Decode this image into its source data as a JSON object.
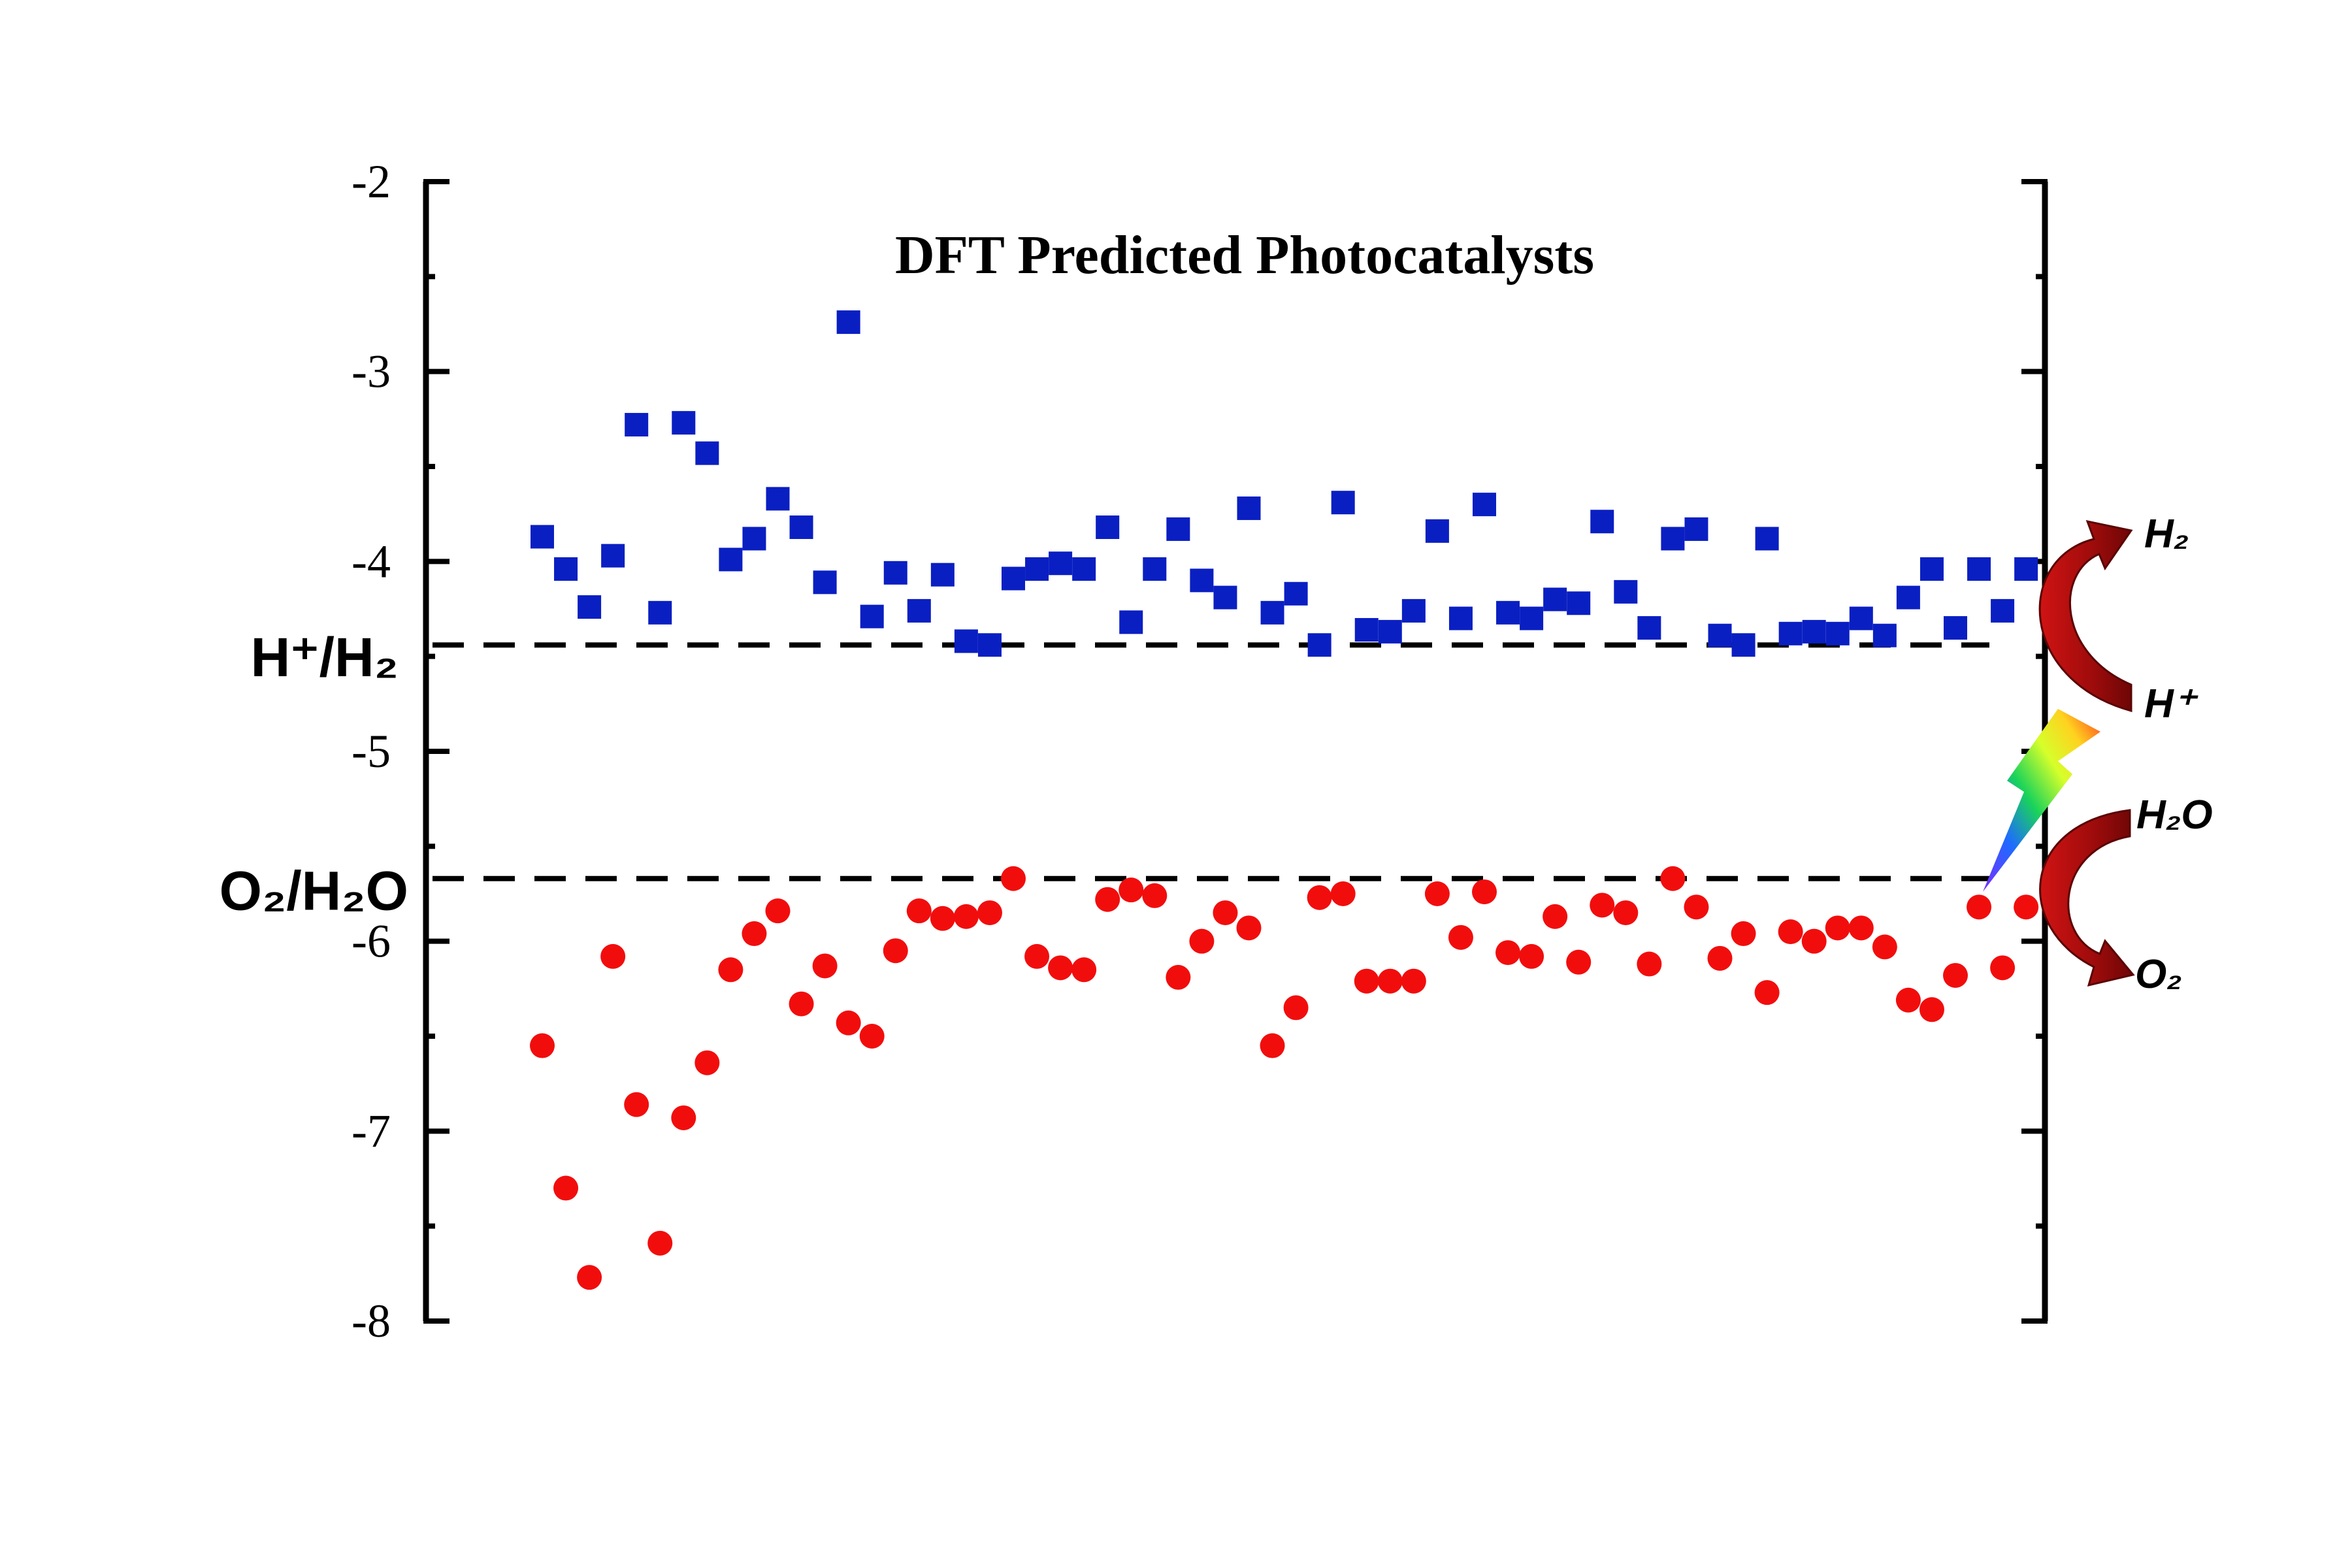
{
  "chart_data": {
    "type": "scatter",
    "title": "DFT Predicted Photocatalysts",
    "xlabel": "",
    "ylabel": "",
    "ylim": [
      -8,
      -2
    ],
    "yticks": [
      "-2",
      "-3",
      "-4",
      "-5",
      "-6",
      "-7",
      "-8"
    ],
    "grid": false,
    "reference_lines": [
      {
        "label": "H⁺/H₂",
        "y": -4.44
      },
      {
        "label": "O₂/H₂O",
        "y": -5.67
      }
    ],
    "reactions": {
      "top_from": "H⁺",
      "top_to": "H₂",
      "bottom_from": "H₂O",
      "bottom_to": "O₂"
    },
    "series": [
      {
        "marker": "square",
        "color": "#0a1fc2",
        "x": [
          1,
          2,
          3,
          4,
          5,
          6,
          7,
          8,
          9,
          10,
          11,
          12,
          13,
          14,
          15,
          16,
          17,
          18,
          19,
          20,
          21,
          22,
          23,
          24,
          25,
          26,
          27,
          28,
          29,
          30,
          31,
          32,
          33,
          34,
          35,
          36,
          37,
          38,
          39,
          40,
          41,
          42,
          43,
          44,
          45,
          46,
          47,
          48,
          49,
          50,
          51,
          52,
          53,
          54,
          55,
          56,
          57,
          58,
          59,
          60,
          61,
          62,
          63,
          64
        ],
        "values": [
          -3.87,
          -4.04,
          -4.24,
          -3.97,
          -3.28,
          -4.27,
          -3.27,
          -3.43,
          -3.99,
          -3.88,
          -3.67,
          -3.82,
          -4.11,
          -2.74,
          -4.29,
          -4.06,
          -4.26,
          -4.07,
          -4.42,
          -4.44,
          -4.09,
          -4.04,
          -4.01,
          -4.04,
          -3.82,
          -4.32,
          -4.04,
          -3.83,
          -4.1,
          -4.19,
          -3.72,
          -4.27,
          -4.17,
          -4.44,
          -3.69,
          -4.36,
          -4.37,
          -4.26,
          -3.84,
          -4.3,
          -3.7,
          -4.27,
          -4.3,
          -4.2,
          -4.22,
          -3.79,
          -4.16,
          -4.35,
          -3.88,
          -3.83,
          -4.39,
          -4.44,
          -3.88,
          -4.38,
          -4.37,
          -4.38,
          -4.3,
          -4.39,
          -4.19,
          -4.04,
          -4.35,
          -4.04,
          -4.26,
          -4.04
        ]
      },
      {
        "marker": "circle",
        "color": "#f20d0d",
        "x": [
          1,
          2,
          3,
          4,
          5,
          6,
          7,
          8,
          9,
          10,
          11,
          12,
          13,
          14,
          15,
          16,
          17,
          18,
          19,
          20,
          21,
          22,
          23,
          24,
          25,
          26,
          27,
          28,
          29,
          30,
          31,
          32,
          33,
          34,
          35,
          36,
          37,
          38,
          39,
          40,
          41,
          42,
          43,
          44,
          45,
          46,
          47,
          48,
          49,
          50,
          51,
          52,
          53,
          54,
          55,
          56,
          57,
          58,
          59,
          60,
          61,
          62,
          63,
          64
        ],
        "values": [
          -6.55,
          -7.3,
          -7.77,
          -6.08,
          -6.86,
          -7.59,
          -6.93,
          -6.64,
          -6.15,
          -5.96,
          -5.84,
          -6.33,
          -6.13,
          -6.43,
          -6.5,
          -6.05,
          -5.84,
          -5.88,
          -5.87,
          -5.85,
          -5.67,
          -6.08,
          -6.14,
          -6.15,
          -5.78,
          -5.73,
          -5.76,
          -6.19,
          -6.0,
          -5.85,
          -5.93,
          -6.55,
          -6.35,
          -5.77,
          -5.75,
          -6.21,
          -6.21,
          -6.21,
          -5.75,
          -5.98,
          -5.74,
          -6.06,
          -6.08,
          -5.87,
          -6.11,
          -5.81,
          -5.85,
          -6.12,
          -5.67,
          -5.82,
          -6.09,
          -5.96,
          -6.27,
          -5.95,
          -6.0,
          -5.93,
          -5.93,
          -6.03,
          -6.31,
          -6.36,
          -6.18,
          -5.82,
          -6.14,
          -5.82
        ]
      }
    ]
  }
}
